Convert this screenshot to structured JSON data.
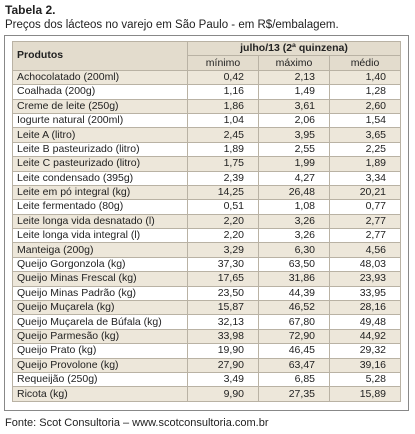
{
  "header": {
    "title": "Tabela 2.",
    "subtitle": "Preços dos lácteos no varejo em São Paulo - em R$/embalagem."
  },
  "table": {
    "product_header": "Produtos",
    "period": "julho/13 (2ª quinzena)",
    "columns": [
      "mínimo",
      "máximo",
      "médio"
    ],
    "rows": [
      [
        "Achocolatado (200ml)",
        "0,42",
        "2,13",
        "1,40"
      ],
      [
        "Coalhada (200g)",
        "1,16",
        "1,49",
        "1,28"
      ],
      [
        "Creme de leite (250g)",
        "1,86",
        "3,61",
        "2,60"
      ],
      [
        "Iogurte natural (200ml)",
        "1,04",
        "2,06",
        "1,54"
      ],
      [
        "Leite A (litro)",
        "2,45",
        "3,95",
        "3,65"
      ],
      [
        "Leite B pasteurizado (litro)",
        "1,89",
        "2,55",
        "2,25"
      ],
      [
        "Leite C pasteurizado (litro)",
        "1,75",
        "1,99",
        "1,89"
      ],
      [
        "Leite condensado (395g)",
        "2,39",
        "4,27",
        "3,34"
      ],
      [
        "Leite em pó integral (kg)",
        "14,25",
        "26,48",
        "20,21"
      ],
      [
        "Leite fermentado (80g)",
        "0,51",
        "1,08",
        "0,77"
      ],
      [
        "Leite longa vida desnatado (l)",
        "2,20",
        "3,26",
        "2,77"
      ],
      [
        "Leite longa vida integral (l)",
        "2,20",
        "3,26",
        "2,77"
      ],
      [
        "Manteiga (200g)",
        "3,29",
        "6,30",
        "4,56"
      ],
      [
        "Queijo Gorgonzola (kg)",
        "37,30",
        "63,50",
        "48,03"
      ],
      [
        "Queijo Minas Frescal (kg)",
        "17,65",
        "31,86",
        "23,93"
      ],
      [
        "Queijo Minas Padrão (kg)",
        "23,50",
        "44,39",
        "33,95"
      ],
      [
        "Queijo Muçarela (kg)",
        "15,87",
        "46,52",
        "28,16"
      ],
      [
        "Queijo Muçarela de Búfala (kg)",
        "32,13",
        "67,80",
        "49,48"
      ],
      [
        "Queijo Parmesão (kg)",
        "33,98",
        "72,90",
        "44,92"
      ],
      [
        "Queijo Prato (kg)",
        "19,90",
        "46,45",
        "29,32"
      ],
      [
        "Queijo Provolone (kg)",
        "27,90",
        "63,47",
        "39,16"
      ],
      [
        "Requeijão (250g)",
        "3,49",
        "6,85",
        "5,28"
      ],
      [
        "Ricota (kg)",
        "9,90",
        "27,35",
        "15,89"
      ]
    ]
  },
  "footer": {
    "source": "Fonte: Scot Consultoria – www.scotconsultoria.com.br"
  }
}
